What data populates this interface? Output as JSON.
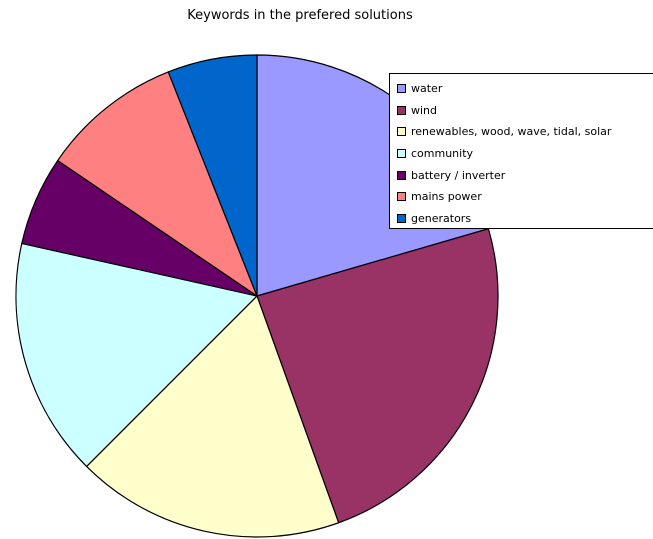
{
  "chart_data": {
    "type": "pie",
    "title": "Keywords in the prefered solutions",
    "categories": [
      "water",
      "wind",
      "renewables, wood, wave, tidal, solar",
      "community",
      "battery / inverter",
      "mains power",
      "generators"
    ],
    "values": [
      20.5,
      24.0,
      18.0,
      16.0,
      6.0,
      9.5,
      6.0
    ],
    "colors": [
      "#9999ff",
      "#993366",
      "#ffffcc",
      "#ccffff",
      "#660066",
      "#ff8080",
      "#0066cc"
    ],
    "start_angle_deg": 0,
    "direction": "clockwise",
    "legend_position": "top-right"
  }
}
